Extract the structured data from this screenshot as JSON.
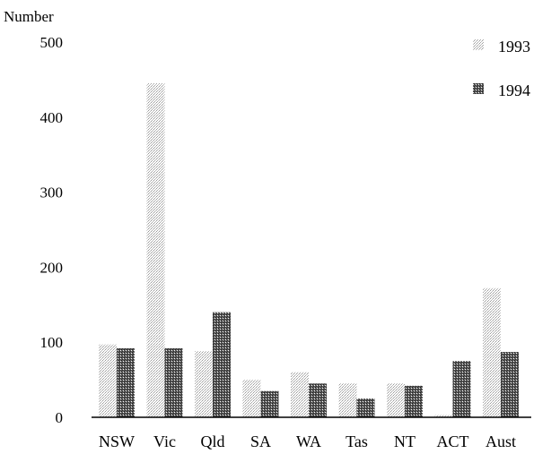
{
  "chart_data": {
    "type": "bar",
    "title": "",
    "ylabel": "Number",
    "xlabel": "",
    "ylim": [
      0,
      500
    ],
    "yticks": [
      0,
      100,
      200,
      300,
      400,
      500
    ],
    "grid": false,
    "legend_position": "top-right",
    "categories": [
      "NSW",
      "Vic",
      "Qld",
      "SA",
      "WA",
      "Tas",
      "NT",
      "ACT",
      "Aust"
    ],
    "series": [
      {
        "name": "1993",
        "values": [
          97,
          445,
          88,
          50,
          60,
          45,
          45,
          3,
          172
        ],
        "color": "#c4c4c4"
      },
      {
        "name": "1994",
        "values": [
          92,
          92,
          140,
          35,
          45,
          25,
          42,
          75,
          87
        ],
        "color": "#5a5a5a"
      }
    ]
  }
}
